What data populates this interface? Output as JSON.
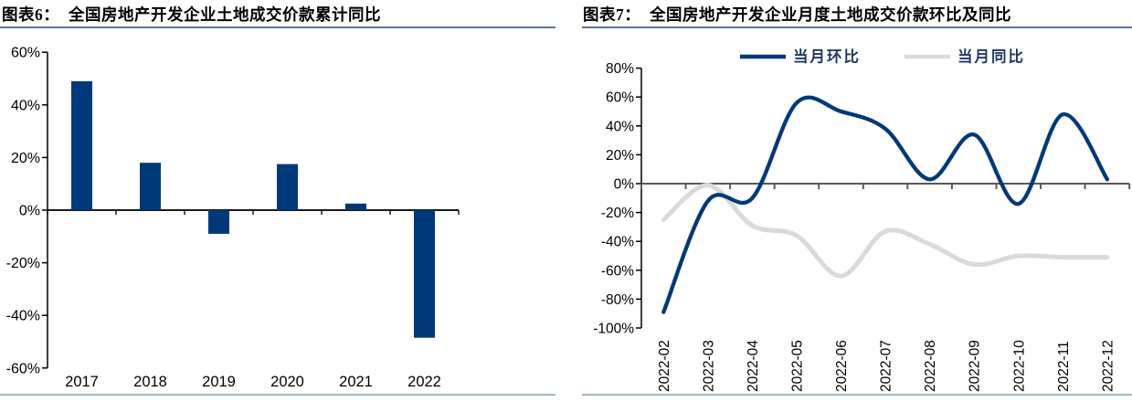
{
  "figure6": {
    "label": "图表6：",
    "title": "图表6：  全国房地产开发企业土地成交价款累计同比"
  },
  "figure7": {
    "label": "图表7：",
    "title": "图表7：  全国房地产开发企业月度土地成交价款环比及同比"
  },
  "chart_data": [
    {
      "type": "bar",
      "title": "全国房地产开发企业土地成交价款累计同比",
      "categories": [
        "2017",
        "2018",
        "2019",
        "2020",
        "2021",
        "2022"
      ],
      "values": [
        49,
        18,
        -9,
        17.5,
        2.5,
        -48.5
      ],
      "xlabel": "",
      "ylabel": "",
      "ylim": [
        -60,
        60
      ],
      "ytick_step": 20,
      "ytick_labels": [
        "60%",
        "40%",
        "20%",
        "0%",
        "-20%",
        "-40%",
        "-60%"
      ],
      "bar_color": "#00397A",
      "grid": false,
      "legend_position": "none"
    },
    {
      "type": "line",
      "title": "全国房地产开发企业月度土地成交价款环比及同比",
      "categories": [
        "2022-02",
        "2022-03",
        "2022-04",
        "2022-05",
        "2022-06",
        "2022-07",
        "2022-08",
        "2022-09",
        "2022-10",
        "2022-11",
        "2022-12"
      ],
      "series": [
        {
          "name": "当月环比",
          "color": "#00397A",
          "values": [
            -89,
            -12,
            -10,
            56,
            50,
            38,
            3,
            34,
            -14,
            48,
            3
          ]
        },
        {
          "name": "当月同比",
          "color": "#DADADA",
          "values": [
            -25,
            -1,
            -29,
            -36,
            -64,
            -33,
            -42,
            -56,
            -50,
            -51,
            -51
          ]
        }
      ],
      "xlabel": "",
      "ylabel": "",
      "ylim": [
        -100,
        80
      ],
      "ytick_step": 20,
      "ytick_labels": [
        "80%",
        "60%",
        "40%",
        "20%",
        "0%",
        "-20%",
        "-40%",
        "-60%",
        "-80%",
        "-100%"
      ],
      "zero_line_color": "#595959",
      "grid": false,
      "legend_position": "top"
    }
  ],
  "colors": {
    "accent_navy": "#00397A",
    "series_gray": "#DADADA",
    "title_rule": "#5E7397",
    "bottom_rule": "#9FB5CD",
    "legend_text": "#1F3864"
  }
}
